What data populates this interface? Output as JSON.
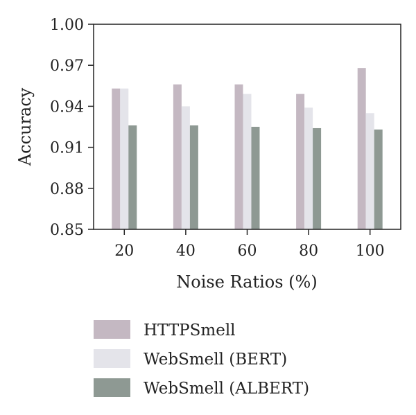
{
  "chart_data": {
    "type": "bar",
    "categories": [
      "20",
      "40",
      "60",
      "80",
      "100"
    ],
    "series": [
      {
        "name": "HTTPSmell",
        "values": [
          0.953,
          0.956,
          0.956,
          0.949,
          0.968
        ],
        "color": "#c4b8c2"
      },
      {
        "name": "WebSmell (BERT)",
        "values": [
          0.953,
          0.94,
          0.949,
          0.939,
          0.935
        ],
        "color": "#e4e4ea"
      },
      {
        "name": "WebSmell (ALBERT)",
        "values": [
          0.926,
          0.926,
          0.925,
          0.924,
          0.923
        ],
        "color": "#8e9993"
      }
    ],
    "title": "",
    "xlabel": "Noise Ratios (%)",
    "ylabel": "Accuracy",
    "ylim": [
      0.85,
      1.0
    ],
    "yticks": [
      "0.85",
      "0.88",
      "0.91",
      "0.94",
      "0.97",
      "1.00"
    ],
    "grid": false,
    "legend_position": "bottom"
  }
}
